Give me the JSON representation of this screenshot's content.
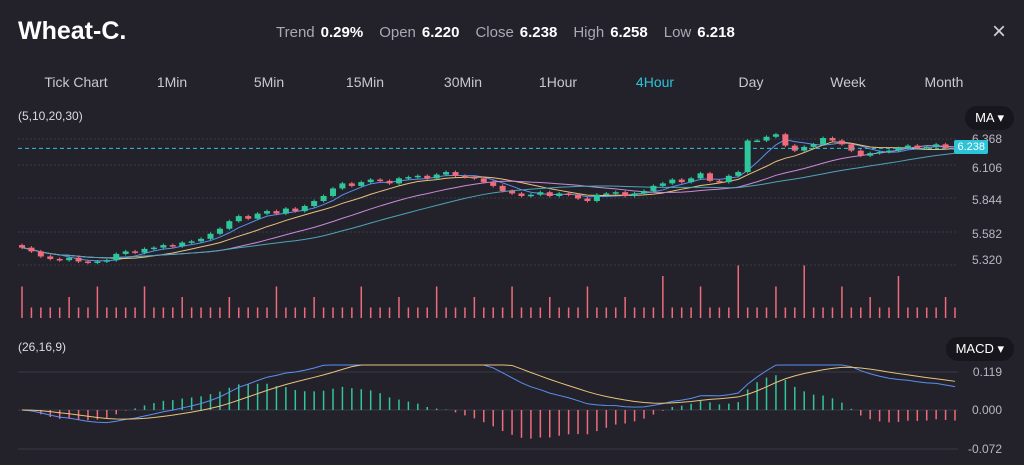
{
  "header": {
    "title": "Wheat-C.",
    "stats": [
      {
        "k": "Trend",
        "v": "0.29%"
      },
      {
        "k": "Open",
        "v": "6.220"
      },
      {
        "k": "Close",
        "v": "6.238"
      },
      {
        "k": "High",
        "v": "6.258"
      },
      {
        "k": "Low",
        "v": "6.218"
      }
    ],
    "close_icon": "×"
  },
  "tabs": [
    {
      "label": "Tick Chart"
    },
    {
      "label": "1Min"
    },
    {
      "label": "5Min"
    },
    {
      "label": "15Min"
    },
    {
      "label": "30Min"
    },
    {
      "label": "1Hour"
    },
    {
      "label": "4Hour",
      "active": true
    },
    {
      "label": "Day"
    },
    {
      "label": "Week"
    },
    {
      "label": "Month"
    }
  ],
  "main": {
    "params": "(5,10,20,30)",
    "indicator": "MA ▾",
    "price_axis": [
      "6.368",
      "6.106",
      "5.844",
      "5.582",
      "5.320"
    ],
    "current_price": "6.238"
  },
  "sub": {
    "params": "(26,16,9)",
    "indicator": "MACD ▾",
    "axis": [
      "0.119",
      "0.000",
      "-0.072"
    ]
  },
  "colors": {
    "up": "#2fc79a",
    "down": "#ef6b7b",
    "accent": "#2bc4d8",
    "ma": [
      "#5b8ff0",
      "#e8c27a",
      "#c98bd8",
      "#4fa3b8"
    ]
  },
  "chart_data": {
    "type": "candlestick",
    "ylim": [
      5.3,
      6.4
    ],
    "closes": [
      5.45,
      5.42,
      5.38,
      5.36,
      5.35,
      5.37,
      5.34,
      5.33,
      5.34,
      5.35,
      5.4,
      5.42,
      5.41,
      5.44,
      5.45,
      5.47,
      5.46,
      5.49,
      5.5,
      5.52,
      5.56,
      5.6,
      5.66,
      5.7,
      5.68,
      5.72,
      5.74,
      5.72,
      5.76,
      5.74,
      5.78,
      5.82,
      5.86,
      5.92,
      5.96,
      5.94,
      5.97,
      5.99,
      5.98,
      5.96,
      6.0,
      6.01,
      6.02,
      6.0,
      6.03,
      6.05,
      6.02,
      6.01,
      6.0,
      5.97,
      5.94,
      5.9,
      5.88,
      5.86,
      5.87,
      5.89,
      5.86,
      5.88,
      5.87,
      5.84,
      5.82,
      5.87,
      5.88,
      5.89,
      5.86,
      5.88,
      5.9,
      5.94,
      5.96,
      5.99,
      5.97,
      6.0,
      6.04,
      5.98,
      5.97,
      6.02,
      6.05,
      6.3,
      6.3,
      6.33,
      6.35,
      6.26,
      6.22,
      6.25,
      6.27,
      6.32,
      6.3,
      6.27,
      6.22,
      6.18,
      6.2,
      6.21,
      6.22,
      6.24,
      6.26,
      6.24,
      6.25,
      6.27,
      6.24,
      6.238
    ],
    "volumes": [
      3,
      1,
      1,
      1,
      1,
      2,
      1,
      1,
      3,
      1,
      1,
      1,
      1,
      3,
      1,
      1,
      1,
      2,
      1,
      1,
      1,
      1,
      2,
      1,
      1,
      1,
      1,
      3,
      1,
      1,
      1,
      2,
      1,
      1,
      1,
      1,
      3,
      1,
      1,
      1,
      2,
      1,
      1,
      1,
      3,
      1,
      1,
      1,
      2,
      1,
      1,
      1,
      3,
      1,
      1,
      1,
      2,
      1,
      1,
      1,
      3,
      1,
      1,
      1,
      2,
      1,
      1,
      1,
      4,
      1,
      1,
      1,
      3,
      1,
      1,
      1,
      5,
      1,
      1,
      1,
      3,
      1,
      1,
      5,
      1,
      1,
      1,
      3,
      1,
      1,
      2,
      1,
      1,
      4,
      1,
      1,
      1,
      1,
      2,
      1
    ]
  }
}
